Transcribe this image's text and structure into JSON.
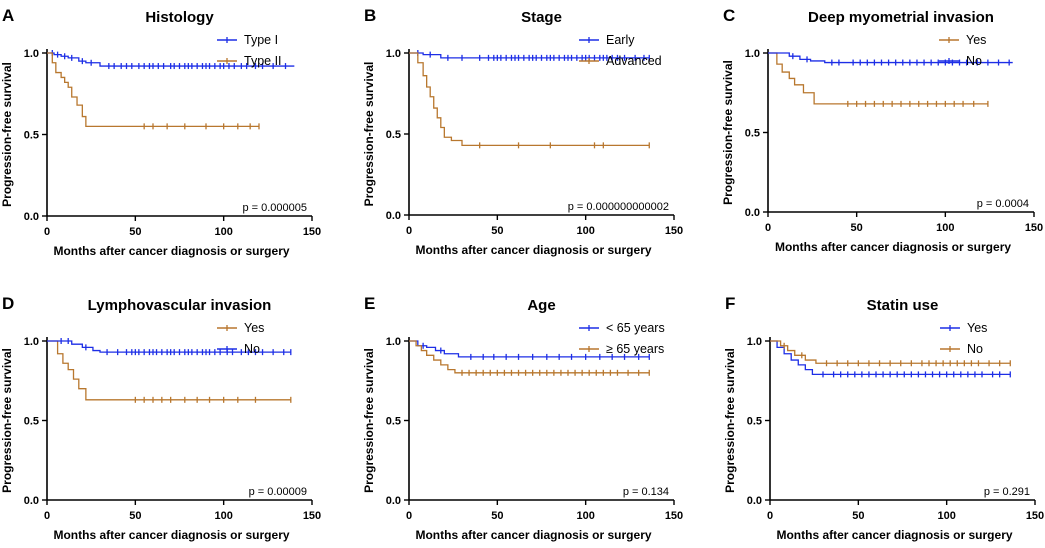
{
  "colors": {
    "blue": "#1d2ee6",
    "orange": "#b8772e"
  },
  "chart_data": [
    {
      "type": "line",
      "letter": "A",
      "title": "Histology",
      "xlabel": "Months after cancer diagnosis or surgery",
      "ylabel": "Progression-free survival",
      "xlim": [
        0,
        150
      ],
      "ylim": [
        0,
        1.0
      ],
      "xticks": [
        0,
        50,
        100,
        150
      ],
      "xtick_labels": [
        "0",
        "50",
        "100",
        "150"
      ],
      "yticks": [
        0,
        0.5,
        1.0
      ],
      "ytick_labels": [
        "0.0",
        "0.5",
        "1.0"
      ],
      "p_value": "p = 0.000005",
      "legend_position": "top-right",
      "series": [
        {
          "name": "Type I",
          "color": "blue",
          "x": [
            0,
            4,
            8,
            12,
            18,
            22,
            30,
            140
          ],
          "y": [
            1.0,
            0.99,
            0.98,
            0.97,
            0.95,
            0.94,
            0.92,
            0.92
          ],
          "censors": [
            3,
            6,
            10,
            14,
            20,
            25,
            35,
            38,
            42,
            45,
            48,
            52,
            55,
            58,
            60,
            63,
            66,
            70,
            72,
            75,
            78,
            80,
            82,
            85,
            88,
            90,
            92,
            95,
            98,
            100,
            103,
            106,
            110,
            113,
            118,
            122,
            128,
            135
          ]
        },
        {
          "name": "Type II",
          "color": "orange",
          "x": [
            0,
            3,
            5,
            8,
            10,
            12,
            14,
            17,
            20,
            22,
            120
          ],
          "y": [
            1.0,
            0.94,
            0.88,
            0.85,
            0.82,
            0.79,
            0.73,
            0.68,
            0.61,
            0.55,
            0.55
          ],
          "censors": [
            55,
            60,
            68,
            78,
            90,
            100,
            108,
            115,
            120
          ]
        }
      ]
    },
    {
      "type": "line",
      "letter": "B",
      "title": "Stage",
      "xlabel": "Months after cancer diagnosis or surgery",
      "ylabel": "Progression-free survival",
      "xlim": [
        0,
        150
      ],
      "ylim": [
        0,
        1.0
      ],
      "xticks": [
        0,
        50,
        100,
        150
      ],
      "xtick_labels": [
        "0",
        "50",
        "100",
        "150"
      ],
      "yticks": [
        0,
        0.5,
        1.0
      ],
      "ytick_labels": [
        "0.0",
        "0.5",
        "1.0"
      ],
      "p_value": "p = 0.000000000002",
      "legend_position": "top-right",
      "series": [
        {
          "name": "Early",
          "color": "blue",
          "x": [
            0,
            8,
            18,
            136
          ],
          "y": [
            1.0,
            0.99,
            0.97,
            0.97
          ],
          "censors": [
            5,
            12,
            22,
            30,
            40,
            45,
            48,
            50,
            52,
            55,
            58,
            60,
            62,
            65,
            68,
            70,
            72,
            75,
            78,
            80,
            82,
            85,
            88,
            90,
            92,
            95,
            98,
            100,
            102,
            105,
            108,
            110,
            112,
            115,
            118,
            122,
            128,
            133,
            136
          ]
        },
        {
          "name": "Advanced",
          "color": "orange",
          "x": [
            0,
            5,
            8,
            10,
            12,
            14,
            16,
            18,
            20,
            24,
            30,
            136
          ],
          "y": [
            1.0,
            0.94,
            0.86,
            0.79,
            0.73,
            0.66,
            0.6,
            0.54,
            0.48,
            0.46,
            0.43,
            0.43
          ],
          "censors": [
            40,
            62,
            80,
            105,
            110,
            136
          ]
        }
      ]
    },
    {
      "type": "line",
      "letter": "C",
      "title": "Deep myometrial invasion",
      "xlabel": "Months after cancer diagnosis or surgery",
      "ylabel": "Progression-free survival",
      "xlim": [
        0,
        150
      ],
      "ylim": [
        0,
        1.0
      ],
      "xticks": [
        0,
        50,
        100,
        150
      ],
      "xtick_labels": [
        "0",
        "50",
        "100",
        "150"
      ],
      "yticks": [
        0,
        0.5,
        1.0
      ],
      "ytick_labels": [
        "0.0",
        "0.5",
        "1.0"
      ],
      "p_value": "p = 0.0004",
      "legend_position": "top-right",
      "series": [
        {
          "name": "Yes",
          "color": "orange",
          "x": [
            0,
            5,
            8,
            12,
            15,
            20,
            26,
            124
          ],
          "y": [
            1.0,
            0.93,
            0.88,
            0.84,
            0.8,
            0.75,
            0.68,
            0.68
          ],
          "censors": [
            45,
            50,
            55,
            60,
            65,
            70,
            75,
            80,
            85,
            90,
            95,
            100,
            105,
            110,
            116,
            124
          ]
        },
        {
          "name": "No",
          "color": "blue",
          "x": [
            0,
            12,
            18,
            24,
            32,
            138
          ],
          "y": [
            1.0,
            0.98,
            0.96,
            0.95,
            0.94,
            0.94
          ],
          "censors": [
            14,
            22,
            36,
            40,
            48,
            52,
            56,
            60,
            64,
            68,
            72,
            76,
            80,
            84,
            88,
            92,
            96,
            100,
            104,
            108,
            112,
            118,
            124,
            130,
            136
          ]
        }
      ]
    },
    {
      "type": "line",
      "letter": "D",
      "title": "Lymphovascular invasion",
      "xlabel": "Months after cancer diagnosis or surgery",
      "ylabel": "Progression-free survival",
      "xlim": [
        0,
        150
      ],
      "ylim": [
        0,
        1.0
      ],
      "xticks": [
        0,
        50,
        100,
        150
      ],
      "xtick_labels": [
        "0",
        "50",
        "100",
        "150"
      ],
      "yticks": [
        0,
        0.5,
        1.0
      ],
      "ytick_labels": [
        "0.0",
        "0.5",
        "1.0"
      ],
      "p_value": "p = 0.00009",
      "legend_position": "top-right",
      "series": [
        {
          "name": "Yes",
          "color": "orange",
          "x": [
            0,
            6,
            9,
            12,
            15,
            18,
            22,
            138
          ],
          "y": [
            1.0,
            0.92,
            0.86,
            0.82,
            0.76,
            0.7,
            0.63,
            0.63
          ],
          "censors": [
            50,
            55,
            60,
            65,
            70,
            78,
            85,
            92,
            100,
            108,
            118,
            138
          ]
        },
        {
          "name": "No",
          "color": "blue",
          "x": [
            0,
            14,
            20,
            26,
            30,
            138
          ],
          "y": [
            1.0,
            0.98,
            0.96,
            0.94,
            0.93,
            0.93
          ],
          "censors": [
            8,
            12,
            22,
            34,
            40,
            45,
            48,
            50,
            52,
            55,
            58,
            60,
            62,
            65,
            68,
            70,
            72,
            75,
            78,
            80,
            82,
            85,
            88,
            90,
            92,
            95,
            98,
            102,
            105,
            110,
            114,
            118,
            122,
            128,
            134,
            138
          ]
        }
      ]
    },
    {
      "type": "line",
      "letter": "E",
      "title": "Age",
      "xlabel": "Months after cancer diagnosis or surgery",
      "ylabel": "Progression-free survival",
      "xlim": [
        0,
        150
      ],
      "ylim": [
        0,
        1.0
      ],
      "xticks": [
        0,
        50,
        100,
        150
      ],
      "xtick_labels": [
        "0",
        "50",
        "100",
        "150"
      ],
      "yticks": [
        0,
        0.5,
        1.0
      ],
      "ytick_labels": [
        "0.0",
        "0.5",
        "1.0"
      ],
      "p_value": "p = 0.134",
      "legend_position": "top-right",
      "series": [
        {
          "name": "< 65 years",
          "color": "blue",
          "x": [
            0,
            5,
            10,
            15,
            20,
            28,
            136
          ],
          "y": [
            1.0,
            0.97,
            0.96,
            0.94,
            0.92,
            0.9,
            0.9
          ],
          "censors": [
            8,
            18,
            35,
            42,
            48,
            55,
            62,
            70,
            78,
            85,
            92,
            100,
            108,
            115,
            122,
            130,
            136
          ]
        },
        {
          "name": "≥ 65 years",
          "color": "orange",
          "x": [
            0,
            4,
            7,
            10,
            14,
            18,
            22,
            26,
            136
          ],
          "y": [
            1.0,
            0.97,
            0.94,
            0.91,
            0.88,
            0.85,
            0.82,
            0.8,
            0.8
          ],
          "censors": [
            30,
            34,
            38,
            42,
            46,
            50,
            54,
            58,
            62,
            66,
            70,
            74,
            78,
            82,
            86,
            90,
            94,
            98,
            102,
            106,
            110,
            114,
            118,
            124,
            130,
            136
          ]
        }
      ]
    },
    {
      "type": "line",
      "letter": "F",
      "title": "Statin use",
      "xlabel": "Months after cancer diagnosis or surgery",
      "ylabel": "Progression-free survival",
      "xlim": [
        0,
        150
      ],
      "ylim": [
        0,
        1.0
      ],
      "xticks": [
        0,
        50,
        100,
        150
      ],
      "xtick_labels": [
        "0",
        "50",
        "100",
        "150"
      ],
      "yticks": [
        0,
        0.5,
        1.0
      ],
      "ytick_labels": [
        "0.0",
        "0.5",
        "1.0"
      ],
      "p_value": "p = 0.291",
      "legend_position": "top-right",
      "series": [
        {
          "name": "Yes",
          "color": "blue",
          "x": [
            0,
            4,
            8,
            12,
            16,
            20,
            24,
            136
          ],
          "y": [
            1.0,
            0.96,
            0.92,
            0.88,
            0.85,
            0.82,
            0.79,
            0.79
          ],
          "censors": [
            30,
            36,
            40,
            44,
            48,
            52,
            56,
            60,
            64,
            68,
            72,
            76,
            80,
            84,
            88,
            92,
            96,
            100,
            104,
            108,
            112,
            116,
            120,
            126,
            130,
            136
          ]
        },
        {
          "name": "No",
          "color": "orange",
          "x": [
            0,
            6,
            10,
            14,
            20,
            26,
            136
          ],
          "y": [
            1.0,
            0.97,
            0.94,
            0.91,
            0.88,
            0.86,
            0.86
          ],
          "censors": [
            8,
            18,
            32,
            38,
            44,
            50,
            56,
            62,
            68,
            74,
            80,
            86,
            90,
            94,
            98,
            102,
            106,
            110,
            114,
            118,
            124,
            130,
            136
          ]
        }
      ]
    }
  ]
}
